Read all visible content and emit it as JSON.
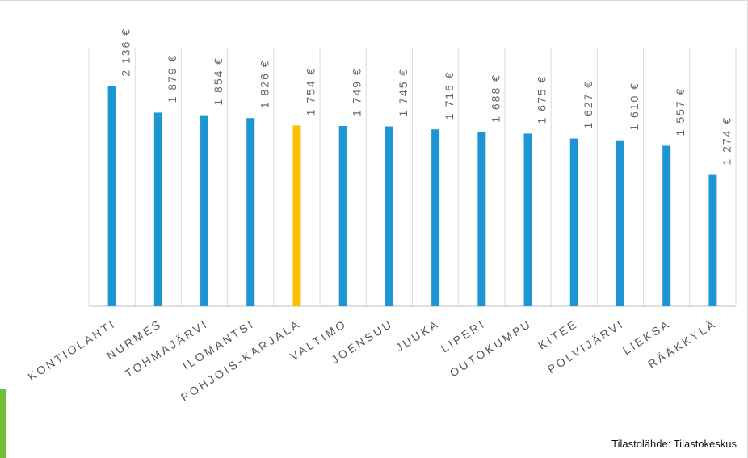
{
  "chart_data": {
    "type": "bar",
    "categories": [
      "KONTIOLAHTI",
      "NURMES",
      "TOHMAJÄRVI",
      "ILOMANTSI",
      "POHJOIS-KARJALA",
      "VALTIMO",
      "JOENSUU",
      "JUUKA",
      "LIPERI",
      "OUTOKUMPU",
      "KITEE",
      "POLVIJÄRVI",
      "LIEKSA",
      "RÄÄKKYLÄ"
    ],
    "values": [
      2136,
      1879,
      1854,
      1826,
      1754,
      1749,
      1745,
      1716,
      1688,
      1675,
      1627,
      1610,
      1557,
      1274
    ],
    "value_labels": [
      "2 136 €",
      "1 879 €",
      "1 854 €",
      "1 826 €",
      "1 754 €",
      "1 749 €",
      "1 745 €",
      "1 716 €",
      "1 688 €",
      "1 675 €",
      "1 627 €",
      "1 610 €",
      "1 557 €",
      "1 274 €"
    ],
    "highlight_category": "POHJOIS-KARJALA",
    "colors": {
      "default": "#1f96d4",
      "highlight": "#ffc000"
    },
    "ylim": [
      0,
      2500
    ],
    "grid": false,
    "legend": "none"
  },
  "footer": {
    "source": "Tilastolähde: Tilastokeskus"
  },
  "colors": {
    "accent": "#6fbf3a"
  }
}
